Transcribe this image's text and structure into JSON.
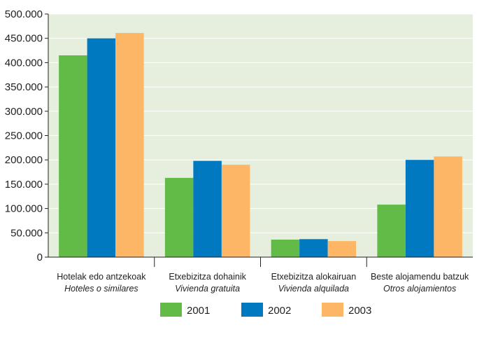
{
  "chart_data": {
    "type": "bar",
    "categories": [
      {
        "label": "Hotelak edo antzekoak",
        "sublabel": "Hoteles o similares"
      },
      {
        "label": "Etxebizitza dohainik",
        "sublabel": "Vivienda gratuita"
      },
      {
        "label": "Etxebizitza alokairuan",
        "sublabel": "Vivienda alquilada"
      },
      {
        "label": "Beste alojamendu batzuk",
        "sublabel": "Otros alojamientos"
      }
    ],
    "series": [
      {
        "name": "2001",
        "color": "#62bb46",
        "values": [
          415000,
          163000,
          36000,
          108000
        ]
      },
      {
        "name": "2002",
        "color": "#0079c1",
        "values": [
          450000,
          198000,
          37000,
          200000
        ]
      },
      {
        "name": "2003",
        "color": "#fdb665",
        "values": [
          461000,
          190000,
          33000,
          207000
        ]
      }
    ],
    "ylim": [
      0,
      500000
    ],
    "yticks": [
      "0",
      "50.000",
      "100.000",
      "150.000",
      "200.000",
      "250.000",
      "300.000",
      "350.000",
      "400.000",
      "450.000",
      "500.000"
    ],
    "grid": true,
    "legend": "bottom",
    "plot_background": "#e6eedd",
    "grid_color": "#ffffff"
  }
}
